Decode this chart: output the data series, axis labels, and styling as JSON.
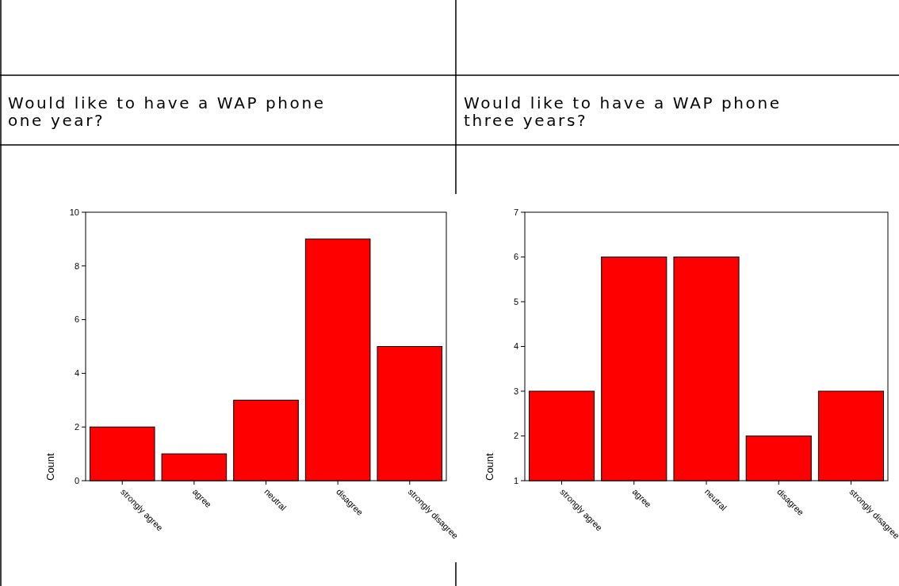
{
  "chart_data": [
    {
      "type": "bar",
      "title": "Would like to have a WAP phone one year?",
      "ylabel": "Count",
      "categories": [
        "strongly agree",
        "agree",
        "neutral",
        "disagree",
        "strongly disagree"
      ],
      "values": [
        2,
        1,
        3,
        9,
        5
      ],
      "color": "#ff0000",
      "ylim": [
        0,
        10
      ],
      "yticks": [
        0,
        2,
        4,
        6,
        8,
        10
      ]
    },
    {
      "type": "bar",
      "title": "Would like to have a WAP phone three years?",
      "ylabel": "Count",
      "categories": [
        "strongly agree",
        "agree",
        "neutral",
        "disagree",
        "strongly disagree"
      ],
      "values": [
        3,
        6,
        6,
        2,
        3
      ],
      "color": "#ff0000",
      "ylim": [
        1,
        7
      ],
      "yticks": [
        1,
        2,
        3,
        4,
        5,
        6,
        7
      ]
    }
  ]
}
